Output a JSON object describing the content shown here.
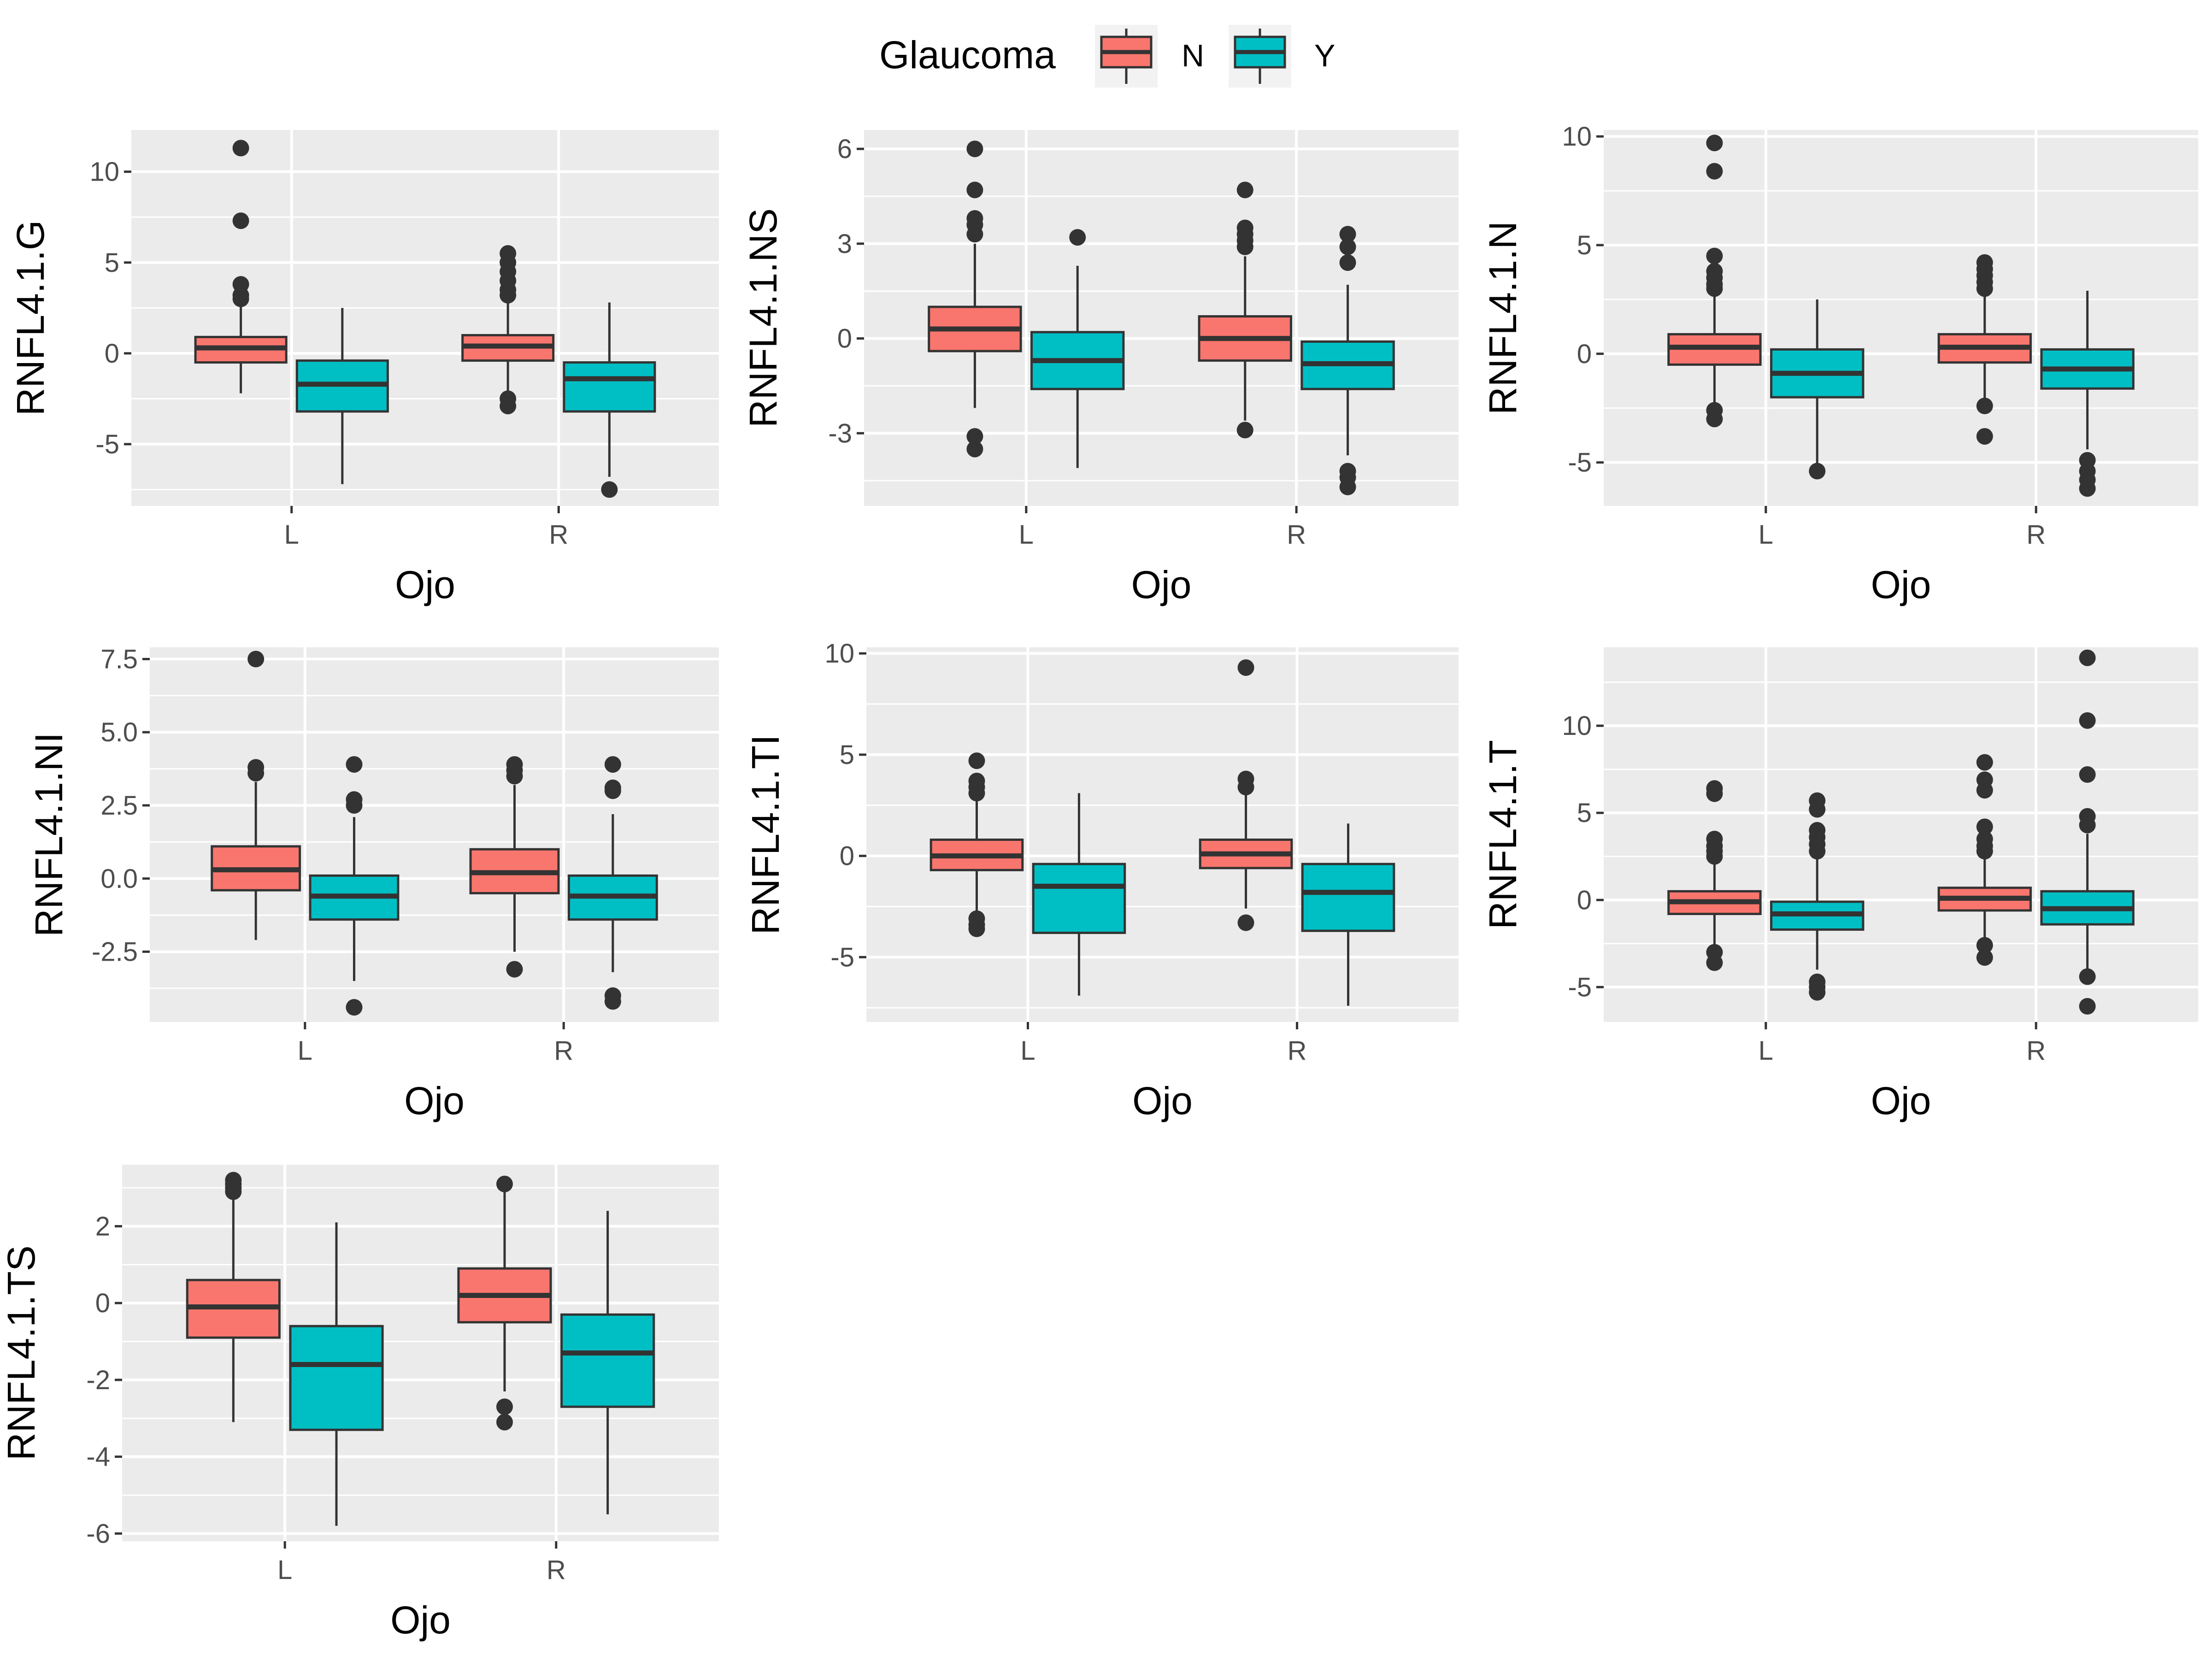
{
  "legend": {
    "title": "Glaucoma",
    "items": [
      {
        "key": "N",
        "label": "N",
        "color": "#F8766D"
      },
      {
        "key": "Y",
        "label": "Y",
        "color": "#00BFC4"
      }
    ]
  },
  "colors": {
    "panel_bg": "#EBEBEB",
    "grid": "#FFFFFF",
    "box_line": "#333333",
    "outlier": "#333333"
  },
  "chart_data": [
    {
      "type": "box",
      "ylabel": "RNFL4.1.G",
      "xlabel": "Ojo",
      "categories": [
        "L",
        "R"
      ],
      "ylim": [
        -8.4,
        12.3
      ],
      "yticks": [
        10,
        5,
        0,
        -5
      ],
      "ytick_labels": [
        "10",
        "5",
        "0",
        "-5"
      ],
      "boxes": [
        {
          "category": "L",
          "group": "N",
          "q1": -0.5,
          "median": 0.3,
          "q3": 0.9,
          "whisker_low": -2.2,
          "whisker_high": 2.7,
          "outliers": [
            11.3,
            7.3,
            3.8,
            3.2,
            3.0
          ]
        },
        {
          "category": "L",
          "group": "Y",
          "q1": -3.2,
          "median": -1.7,
          "q3": -0.4,
          "whisker_low": -7.2,
          "whisker_high": 2.5,
          "outliers": []
        },
        {
          "category": "R",
          "group": "N",
          "q1": -0.4,
          "median": 0.4,
          "q3": 1.0,
          "whisker_low": -2.3,
          "whisker_high": 2.8,
          "outliers": [
            5.5,
            5.0,
            4.5,
            4.0,
            3.5,
            3.2,
            -2.5,
            -2.9
          ]
        },
        {
          "category": "R",
          "group": "Y",
          "q1": -3.2,
          "median": -1.4,
          "q3": -0.5,
          "whisker_low": -6.8,
          "whisker_high": 2.8,
          "outliers": [
            -7.5
          ]
        }
      ]
    },
    {
      "type": "box",
      "ylabel": "RNFL4.1.NS",
      "xlabel": "Ojo",
      "categories": [
        "L",
        "R"
      ],
      "ylim": [
        -5.3,
        6.6
      ],
      "yticks": [
        6,
        3,
        0,
        -3
      ],
      "ytick_labels": [
        "6",
        "3",
        "0",
        "-3"
      ],
      "boxes": [
        {
          "category": "L",
          "group": "N",
          "q1": -0.4,
          "median": 0.3,
          "q3": 1.0,
          "whisker_low": -2.2,
          "whisker_high": 3.0,
          "outliers": [
            6.0,
            4.7,
            3.8,
            3.6,
            3.3,
            -3.1,
            -3.5
          ]
        },
        {
          "category": "L",
          "group": "Y",
          "q1": -1.6,
          "median": -0.7,
          "q3": 0.2,
          "whisker_low": -4.1,
          "whisker_high": 2.3,
          "outliers": [
            3.2
          ]
        },
        {
          "category": "R",
          "group": "N",
          "q1": -0.7,
          "median": 0.0,
          "q3": 0.7,
          "whisker_low": -2.6,
          "whisker_high": 2.6,
          "outliers": [
            4.7,
            3.5,
            3.3,
            3.1,
            2.9,
            -2.9
          ]
        },
        {
          "category": "R",
          "group": "Y",
          "q1": -1.6,
          "median": -0.8,
          "q3": -0.1,
          "whisker_low": -3.7,
          "whisker_high": 1.7,
          "outliers": [
            3.3,
            2.9,
            2.4,
            -4.2,
            -4.4,
            -4.7
          ]
        }
      ]
    },
    {
      "type": "box",
      "ylabel": "RNFL4.1.N",
      "xlabel": "Ojo",
      "categories": [
        "L",
        "R"
      ],
      "ylim": [
        -7.0,
        10.3
      ],
      "yticks": [
        10,
        5,
        0,
        -5
      ],
      "ytick_labels": [
        "10",
        "5",
        "0",
        "-5"
      ],
      "boxes": [
        {
          "category": "L",
          "group": "N",
          "q1": -0.5,
          "median": 0.3,
          "q3": 0.9,
          "whisker_low": -2.4,
          "whisker_high": 2.8,
          "outliers": [
            9.7,
            8.4,
            4.5,
            3.8,
            3.5,
            3.2,
            3.0,
            -2.6,
            -3.0
          ]
        },
        {
          "category": "L",
          "group": "Y",
          "q1": -2.0,
          "median": -0.9,
          "q3": 0.2,
          "whisker_low": -5.2,
          "whisker_high": 2.5,
          "outliers": [
            -5.4
          ]
        },
        {
          "category": "R",
          "group": "N",
          "q1": -0.4,
          "median": 0.3,
          "q3": 0.9,
          "whisker_low": -2.2,
          "whisker_high": 2.9,
          "outliers": [
            4.2,
            3.9,
            3.6,
            3.3,
            3.0,
            -2.4,
            -3.8
          ]
        },
        {
          "category": "R",
          "group": "Y",
          "q1": -1.6,
          "median": -0.7,
          "q3": 0.2,
          "whisker_low": -4.4,
          "whisker_high": 2.9,
          "outliers": [
            -4.9,
            -5.4,
            -5.8,
            -6.2
          ]
        }
      ]
    },
    {
      "type": "box",
      "ylabel": "RNFL4.1.NI",
      "xlabel": "Ojo",
      "categories": [
        "L",
        "R"
      ],
      "ylim": [
        -4.9,
        7.9
      ],
      "yticks": [
        7.5,
        5.0,
        2.5,
        0.0,
        -2.5
      ],
      "ytick_labels": [
        "7.5",
        "5.0",
        "2.5",
        "0.0",
        "-2.5"
      ],
      "boxes": [
        {
          "category": "L",
          "group": "N",
          "q1": -0.4,
          "median": 0.3,
          "q3": 1.1,
          "whisker_low": -2.1,
          "whisker_high": 3.3,
          "outliers": [
            7.5,
            3.8,
            3.6
          ]
        },
        {
          "category": "L",
          "group": "Y",
          "q1": -1.4,
          "median": -0.6,
          "q3": 0.1,
          "whisker_low": -3.5,
          "whisker_high": 2.1,
          "outliers": [
            3.9,
            2.7,
            2.5,
            -4.4
          ]
        },
        {
          "category": "R",
          "group": "N",
          "q1": -0.5,
          "median": 0.2,
          "q3": 1.0,
          "whisker_low": -2.5,
          "whisker_high": 3.2,
          "outliers": [
            3.9,
            3.7,
            3.5,
            -3.1
          ]
        },
        {
          "category": "R",
          "group": "Y",
          "q1": -1.4,
          "median": -0.6,
          "q3": 0.1,
          "whisker_low": -3.2,
          "whisker_high": 2.2,
          "outliers": [
            3.9,
            3.1,
            3.0,
            -4.0,
            -4.2
          ]
        }
      ]
    },
    {
      "type": "box",
      "ylabel": "RNFL4.1.TI",
      "xlabel": "Ojo",
      "categories": [
        "L",
        "R"
      ],
      "ylim": [
        -8.2,
        10.3
      ],
      "yticks": [
        10,
        5,
        0,
        -5
      ],
      "ytick_labels": [
        "10",
        "5",
        "0",
        "-5"
      ],
      "boxes": [
        {
          "category": "L",
          "group": "N",
          "q1": -0.7,
          "median": 0.0,
          "q3": 0.8,
          "whisker_low": -2.8,
          "whisker_high": 2.9,
          "outliers": [
            4.7,
            3.7,
            3.4,
            3.1,
            -3.1,
            -3.4,
            -3.6
          ]
        },
        {
          "category": "L",
          "group": "Y",
          "q1": -3.8,
          "median": -1.5,
          "q3": -0.4,
          "whisker_low": -6.9,
          "whisker_high": 3.1,
          "outliers": []
        },
        {
          "category": "R",
          "group": "N",
          "q1": -0.6,
          "median": 0.1,
          "q3": 0.8,
          "whisker_low": -2.6,
          "whisker_high": 3.0,
          "outliers": [
            9.3,
            3.8,
            3.4,
            -3.3
          ]
        },
        {
          "category": "R",
          "group": "Y",
          "q1": -3.7,
          "median": -1.8,
          "q3": -0.4,
          "whisker_low": -7.4,
          "whisker_high": 1.6,
          "outliers": []
        }
      ]
    },
    {
      "type": "box",
      "ylabel": "RNFL4.1.T",
      "xlabel": "Ojo",
      "categories": [
        "L",
        "R"
      ],
      "ylim": [
        -7.0,
        14.5
      ],
      "yticks": [
        10,
        5,
        0,
        -5
      ],
      "ytick_labels": [
        "10",
        "5",
        "0",
        "-5"
      ],
      "boxes": [
        {
          "category": "L",
          "group": "N",
          "q1": -0.8,
          "median": -0.1,
          "q3": 0.5,
          "whisker_low": -2.6,
          "whisker_high": 2.3,
          "outliers": [
            6.4,
            6.1,
            3.5,
            3.1,
            2.8,
            2.5,
            -3.0,
            -3.6
          ]
        },
        {
          "category": "L",
          "group": "Y",
          "q1": -1.7,
          "median": -0.8,
          "q3": -0.1,
          "whisker_low": -4.0,
          "whisker_high": 2.5,
          "outliers": [
            5.7,
            5.2,
            4.0,
            3.6,
            3.2,
            2.8,
            -4.7,
            -5.0,
            -5.3
          ]
        },
        {
          "category": "R",
          "group": "N",
          "q1": -0.6,
          "median": 0.1,
          "q3": 0.7,
          "whisker_low": -2.5,
          "whisker_high": 2.6,
          "outliers": [
            7.9,
            6.9,
            6.3,
            4.2,
            3.5,
            3.1,
            2.8,
            -2.6,
            -3.3
          ]
        },
        {
          "category": "R",
          "group": "Y",
          "q1": -1.4,
          "median": -0.5,
          "q3": 0.5,
          "whisker_low": -4.0,
          "whisker_high": 3.8,
          "outliers": [
            13.9,
            10.3,
            7.2,
            4.8,
            4.3,
            -4.4,
            -6.1
          ]
        }
      ]
    },
    {
      "type": "box",
      "ylabel": "RNFL4.1.TS",
      "xlabel": "Ojo",
      "categories": [
        "L",
        "R"
      ],
      "ylim": [
        -6.2,
        3.6
      ],
      "yticks": [
        2,
        0,
        -2,
        -4,
        -6
      ],
      "ytick_labels": [
        "2",
        "0",
        "-2",
        "-4",
        "-6"
      ],
      "boxes": [
        {
          "category": "L",
          "group": "N",
          "q1": -0.9,
          "median": -0.1,
          "q3": 0.6,
          "whisker_low": -3.1,
          "whisker_high": 2.8,
          "outliers": [
            3.2,
            3.1,
            3.0,
            2.9
          ]
        },
        {
          "category": "L",
          "group": "Y",
          "q1": -3.3,
          "median": -1.6,
          "q3": -0.6,
          "whisker_low": -5.8,
          "whisker_high": 2.1,
          "outliers": []
        },
        {
          "category": "R",
          "group": "N",
          "q1": -0.5,
          "median": 0.2,
          "q3": 0.9,
          "whisker_low": -2.3,
          "whisker_high": 2.9,
          "outliers": [
            3.1,
            -2.7,
            -3.1
          ]
        },
        {
          "category": "R",
          "group": "Y",
          "q1": -2.7,
          "median": -1.3,
          "q3": -0.3,
          "whisker_low": -5.5,
          "whisker_high": 2.4,
          "outliers": []
        }
      ]
    }
  ]
}
